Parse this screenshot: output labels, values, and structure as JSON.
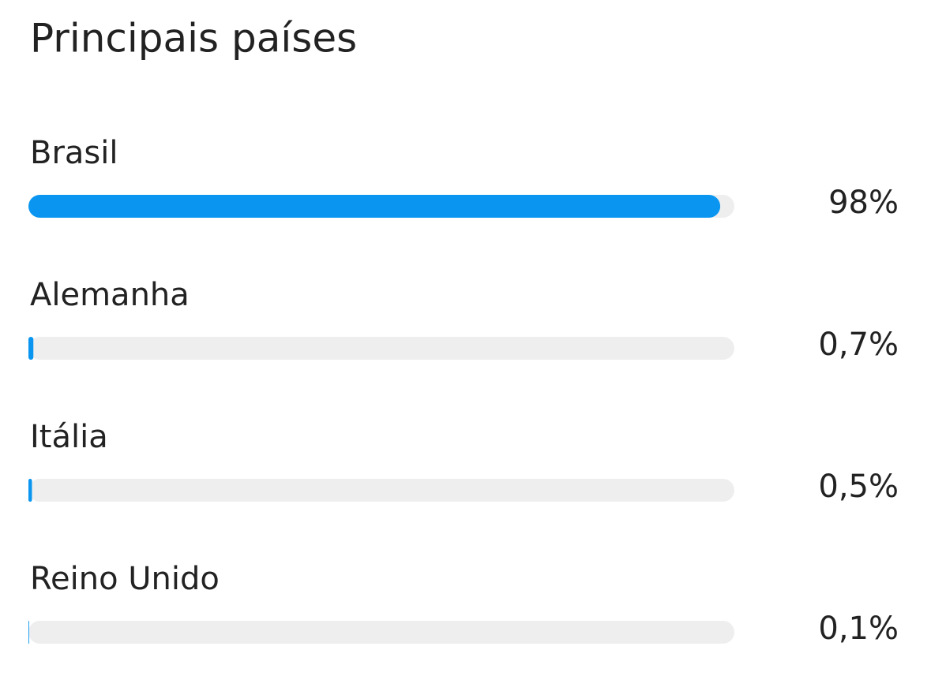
{
  "chart_data": {
    "type": "bar",
    "orientation": "horizontal",
    "title": "Principais países",
    "categories": [
      "Brasil",
      "Alemanha",
      "Itália",
      "Reino Unido"
    ],
    "values": [
      98,
      0.7,
      0.5,
      0.1
    ],
    "value_labels": [
      "98%",
      "0,7%",
      "0,5%",
      "0,1%"
    ],
    "xlim": [
      0,
      100
    ],
    "color": "#0a96f0",
    "track_color": "#eeeeee"
  }
}
